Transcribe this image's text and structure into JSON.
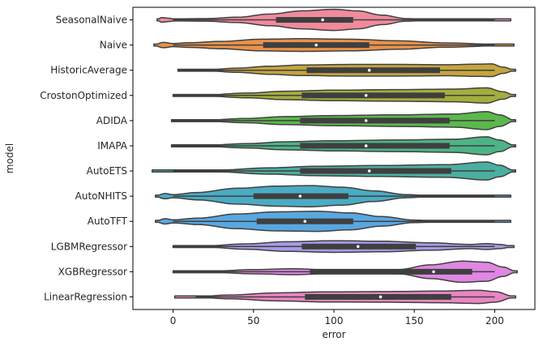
{
  "chart_data": {
    "type": "violin",
    "orientation": "horizontal",
    "title": "",
    "xlabel": "error",
    "ylabel": "model",
    "xlim": [
      -25,
      225
    ],
    "xticks": [
      0,
      50,
      100,
      150,
      200
    ],
    "xtick_labels": [
      "0",
      "50",
      "100",
      "150",
      "200"
    ],
    "grid": false,
    "legend": "none",
    "categories": [
      "SeasonalNaive",
      "Naive",
      "HistoricAverage",
      "CrostonOptimized",
      "ADIDA",
      "IMAPA",
      "AutoETS",
      "AutoNHITS",
      "AutoTFT",
      "LGBMRegressor",
      "XGBRegressor",
      "LinearRegression"
    ],
    "series": [
      {
        "name": "SeasonalNaive",
        "color": "#f08a9c",
        "min": -10,
        "max": 210,
        "whisker_low": 0,
        "whisker_high": 200,
        "q1": 64,
        "median": 93,
        "q3": 112,
        "density": [
          [
            -10,
            0.03
          ],
          [
            -7,
            0.22
          ],
          [
            -2,
            0.15
          ],
          [
            0,
            0.1
          ],
          [
            20,
            0.12
          ],
          [
            40,
            0.25
          ],
          [
            60,
            0.55
          ],
          [
            80,
            0.85
          ],
          [
            100,
            1.0
          ],
          [
            115,
            0.85
          ],
          [
            130,
            0.45
          ],
          [
            145,
            0.12
          ],
          [
            160,
            0.05
          ],
          [
            200,
            0.03
          ],
          [
            210,
            0.0
          ]
        ]
      },
      {
        "name": "Naive",
        "color": "#e8924a",
        "min": -12,
        "max": 212,
        "whisker_low": 0,
        "whisker_high": 200,
        "q1": 56,
        "median": 89,
        "q3": 122,
        "density": [
          [
            -12,
            0.03
          ],
          [
            -6,
            0.25
          ],
          [
            0,
            0.15
          ],
          [
            10,
            0.22
          ],
          [
            30,
            0.35
          ],
          [
            55,
            0.55
          ],
          [
            80,
            0.6
          ],
          [
            110,
            0.55
          ],
          [
            140,
            0.4
          ],
          [
            170,
            0.2
          ],
          [
            200,
            0.08
          ],
          [
            212,
            0.0
          ]
        ]
      },
      {
        "name": "HistoricAverage",
        "color": "#c4a53e",
        "min": 3,
        "max": 213,
        "whisker_low": 3,
        "whisker_high": 200,
        "q1": 83,
        "median": 122,
        "q3": 166,
        "density": [
          [
            3,
            0.03
          ],
          [
            20,
            0.05
          ],
          [
            40,
            0.2
          ],
          [
            60,
            0.38
          ],
          [
            80,
            0.5
          ],
          [
            110,
            0.55
          ],
          [
            140,
            0.55
          ],
          [
            170,
            0.52
          ],
          [
            190,
            0.58
          ],
          [
            198,
            0.6
          ],
          [
            205,
            0.3
          ],
          [
            213,
            0.0
          ]
        ]
      },
      {
        "name": "CrostonOptimized",
        "color": "#a5ad3d",
        "min": 0,
        "max": 213,
        "whisker_low": 0,
        "whisker_high": 200,
        "q1": 80,
        "median": 120,
        "q3": 169,
        "density": [
          [
            0,
            0.03
          ],
          [
            20,
            0.05
          ],
          [
            45,
            0.22
          ],
          [
            70,
            0.4
          ],
          [
            100,
            0.5
          ],
          [
            140,
            0.55
          ],
          [
            175,
            0.6
          ],
          [
            195,
            0.72
          ],
          [
            205,
            0.35
          ],
          [
            213,
            0.0
          ]
        ]
      },
      {
        "name": "ADIDA",
        "color": "#5bb84c",
        "min": -1,
        "max": 213,
        "whisker_low": -1,
        "whisker_high": 200,
        "q1": 79,
        "median": 120,
        "q3": 172,
        "density": [
          [
            -1,
            0.03
          ],
          [
            20,
            0.05
          ],
          [
            45,
            0.2
          ],
          [
            70,
            0.38
          ],
          [
            100,
            0.48
          ],
          [
            140,
            0.55
          ],
          [
            175,
            0.62
          ],
          [
            195,
            0.85
          ],
          [
            203,
            0.55
          ],
          [
            213,
            0.0
          ]
        ]
      },
      {
        "name": "IMAPA",
        "color": "#4cb484",
        "min": -1,
        "max": 213,
        "whisker_low": -1,
        "whisker_high": 200,
        "q1": 79,
        "median": 120,
        "q3": 172,
        "density": [
          [
            -1,
            0.03
          ],
          [
            20,
            0.05
          ],
          [
            45,
            0.2
          ],
          [
            70,
            0.38
          ],
          [
            100,
            0.48
          ],
          [
            140,
            0.55
          ],
          [
            175,
            0.62
          ],
          [
            195,
            0.85
          ],
          [
            203,
            0.55
          ],
          [
            213,
            0.0
          ]
        ]
      },
      {
        "name": "AutoETS",
        "color": "#4aaea0",
        "min": -13,
        "max": 213,
        "whisker_low": 0,
        "whisker_high": 200,
        "q1": 79,
        "median": 122,
        "q3": 173,
        "density": [
          [
            -13,
            0.03
          ],
          [
            0,
            0.04
          ],
          [
            30,
            0.1
          ],
          [
            60,
            0.3
          ],
          [
            90,
            0.45
          ],
          [
            130,
            0.52
          ],
          [
            170,
            0.6
          ],
          [
            195,
            0.85
          ],
          [
            203,
            0.55
          ],
          [
            213,
            0.0
          ]
        ]
      },
      {
        "name": "AutoNHITS",
        "color": "#4aabc3",
        "min": -11,
        "max": 210,
        "whisker_low": 0,
        "whisker_high": 200,
        "q1": 50,
        "median": 79,
        "q3": 109,
        "density": [
          [
            -11,
            0.03
          ],
          [
            -5,
            0.25
          ],
          [
            0,
            0.15
          ],
          [
            15,
            0.35
          ],
          [
            40,
            0.75
          ],
          [
            65,
            0.95
          ],
          [
            85,
            1.0
          ],
          [
            105,
            0.85
          ],
          [
            125,
            0.5
          ],
          [
            145,
            0.15
          ],
          [
            160,
            0.04
          ],
          [
            210,
            0.0
          ]
        ]
      },
      {
        "name": "AutoTFT",
        "color": "#5aa7e0",
        "min": -11,
        "max": 210,
        "whisker_low": 0,
        "whisker_high": 200,
        "q1": 52,
        "median": 82,
        "q3": 112,
        "density": [
          [
            -11,
            0.03
          ],
          [
            -5,
            0.25
          ],
          [
            0,
            0.15
          ],
          [
            15,
            0.3
          ],
          [
            40,
            0.7
          ],
          [
            65,
            0.9
          ],
          [
            90,
            0.95
          ],
          [
            110,
            0.8
          ],
          [
            130,
            0.45
          ],
          [
            150,
            0.12
          ],
          [
            165,
            0.04
          ],
          [
            210,
            0.0
          ]
        ]
      },
      {
        "name": "LGBMRegressor",
        "color": "#a99ae6",
        "min": 0,
        "max": 212,
        "whisker_low": 0,
        "whisker_high": 200,
        "q1": 80,
        "median": 115,
        "q3": 151,
        "density": [
          [
            0,
            0.03
          ],
          [
            20,
            0.05
          ],
          [
            45,
            0.25
          ],
          [
            70,
            0.45
          ],
          [
            100,
            0.55
          ],
          [
            130,
            0.5
          ],
          [
            160,
            0.35
          ],
          [
            185,
            0.2
          ],
          [
            195,
            0.28
          ],
          [
            203,
            0.2
          ],
          [
            212,
            0.0
          ]
        ]
      },
      {
        "name": "XGBRegressor",
        "color": "#df87e3",
        "min": 0,
        "max": 214,
        "whisker_low": 0,
        "whisker_high": 200,
        "q1": 85,
        "median": 162,
        "q3": 186,
        "density": [
          [
            0,
            0.03
          ],
          [
            25,
            0.06
          ],
          [
            50,
            0.2
          ],
          [
            75,
            0.28
          ],
          [
            100,
            0.15
          ],
          [
            120,
            0.08
          ],
          [
            140,
            0.2
          ],
          [
            160,
            0.65
          ],
          [
            180,
            1.0
          ],
          [
            195,
            0.9
          ],
          [
            205,
            0.45
          ],
          [
            214,
            0.0
          ]
        ]
      },
      {
        "name": "LinearRegression",
        "color": "#ea85c4",
        "min": 1,
        "max": 213,
        "whisker_low": 14,
        "whisker_high": 200,
        "q1": 82,
        "median": 129,
        "q3": 173,
        "density": [
          [
            1,
            0.03
          ],
          [
            14,
            0.03
          ],
          [
            35,
            0.18
          ],
          [
            65,
            0.38
          ],
          [
            95,
            0.48
          ],
          [
            130,
            0.5
          ],
          [
            165,
            0.55
          ],
          [
            190,
            0.62
          ],
          [
            200,
            0.5
          ],
          [
            213,
            0.0
          ]
        ]
      }
    ]
  }
}
